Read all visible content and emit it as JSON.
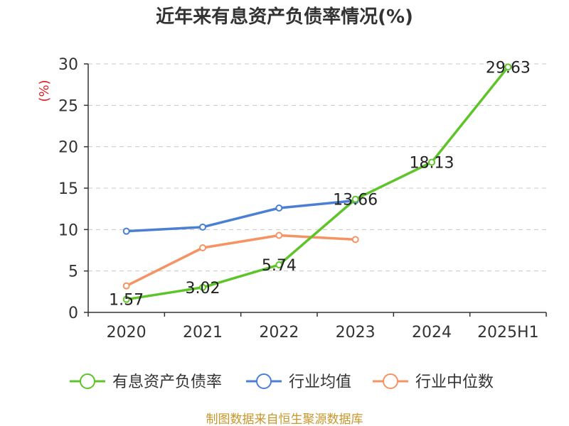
{
  "chart_data": {
    "type": "line",
    "title": "近年来有息资产负债率情况(%)",
    "ylabel": "(%)",
    "categories": [
      "2020",
      "2021",
      "2022",
      "2023",
      "2024",
      "2025H1"
    ],
    "ylim": [
      0,
      30
    ],
    "yticks": [
      0,
      5,
      10,
      15,
      20,
      25,
      30
    ],
    "grid": true,
    "legend_position": "bottom",
    "series": [
      {
        "name": "有息资产负债率",
        "color": "#5ec42a",
        "values": [
          1.57,
          3.02,
          5.74,
          13.66,
          18.13,
          29.63
        ],
        "labels": [
          "1.57",
          "3.02",
          "5.74",
          "13.66",
          "18.13",
          "29.63"
        ]
      },
      {
        "name": "行业均值",
        "color": "#4a7fd4",
        "values": [
          9.8,
          10.3,
          12.6,
          13.5,
          null,
          null
        ]
      },
      {
        "name": "行业中位数",
        "color": "#f59363",
        "values": [
          3.2,
          7.8,
          9.3,
          8.8,
          null,
          null
        ]
      }
    ]
  },
  "source": "制图数据来自恒生聚源数据库"
}
